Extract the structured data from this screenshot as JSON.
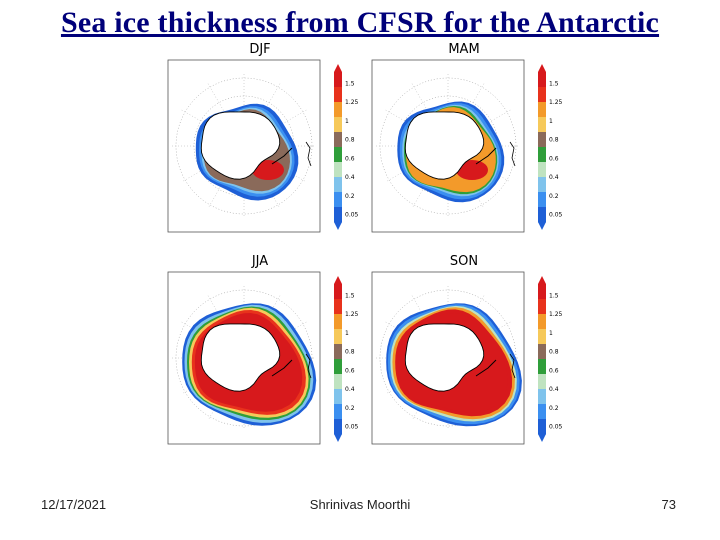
{
  "slide": {
    "title": "Sea ice thickness from CFSR for the Antarctic",
    "footer": {
      "date": "12/17/2021",
      "author": "Shrinivas Moorthi",
      "page_number": "73"
    }
  },
  "colors": {
    "title": "#00007a",
    "levels": [
      "#1e5fd6",
      "#3b8ff0",
      "#7fc3ec",
      "#bfe3c0",
      "#2f9e3a",
      "#8a6a5a",
      "#f6c95a",
      "#f39a2a",
      "#e8321c",
      "#d7191c"
    ]
  },
  "panels": [
    {
      "season": "DJF",
      "colorbar_ticks": [
        "1.5",
        "1.25",
        "1",
        "0.8",
        "0.6",
        "0.4",
        "0.2",
        "0.05"
      ]
    },
    {
      "season": "MAM",
      "colorbar_ticks": [
        "1.5",
        "1.25",
        "1",
        "0.8",
        "0.6",
        "0.4",
        "0.2",
        "0.05"
      ]
    },
    {
      "season": "JJA",
      "colorbar_ticks": [
        "1.5",
        "1.25",
        "1",
        "0.8",
        "0.6",
        "0.4",
        "0.2",
        "0.05"
      ]
    },
    {
      "season": "SON",
      "colorbar_ticks": [
        "1.5",
        "1.25",
        "1",
        "0.8",
        "0.6",
        "0.4",
        "0.2",
        "0.05"
      ]
    }
  ]
}
